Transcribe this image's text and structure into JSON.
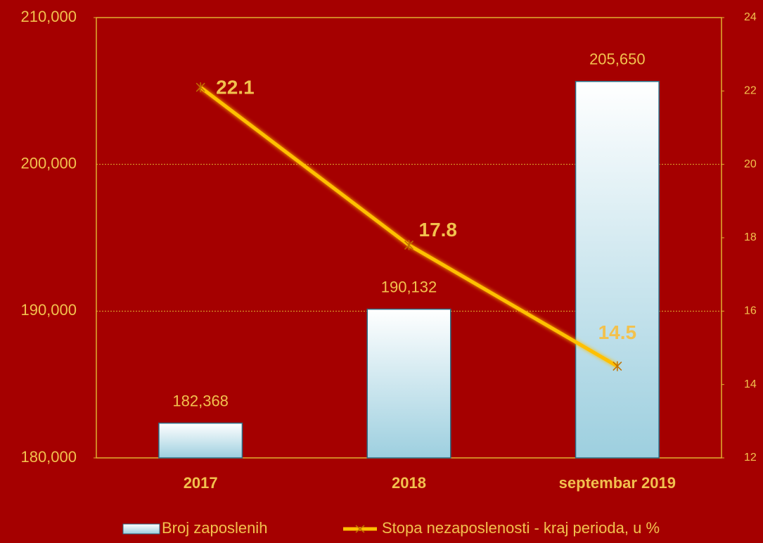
{
  "chart_data": {
    "type": "bar",
    "categories": [
      "2017",
      "2018",
      "septembar 2019"
    ],
    "series": [
      {
        "name": "Broj zaposlenih",
        "type": "bar",
        "color": "#a8d4e2",
        "values": [
          182368,
          190132,
          205650
        ],
        "value_labels": [
          "182,368",
          "190,132",
          "205,650"
        ]
      },
      {
        "name": "Stopa nezaposlenosti - kraj perioda, u %",
        "type": "line",
        "axis": "y2",
        "color": "#ffc000",
        "values": [
          22.1,
          17.8,
          14.5
        ]
      }
    ],
    "ylim": [
      180000,
      210000
    ],
    "yticks": [
      {
        "value": 180000,
        "label": "180,000"
      },
      {
        "value": 190000,
        "label": "190,000"
      },
      {
        "value": 200000,
        "label": "200,000"
      },
      {
        "value": 210000,
        "label": "210,000"
      }
    ],
    "y2lim": [
      12,
      24
    ],
    "y2ticks": [
      12,
      14,
      16,
      18,
      20,
      22,
      24
    ],
    "grid": true,
    "legend": "bottom"
  }
}
